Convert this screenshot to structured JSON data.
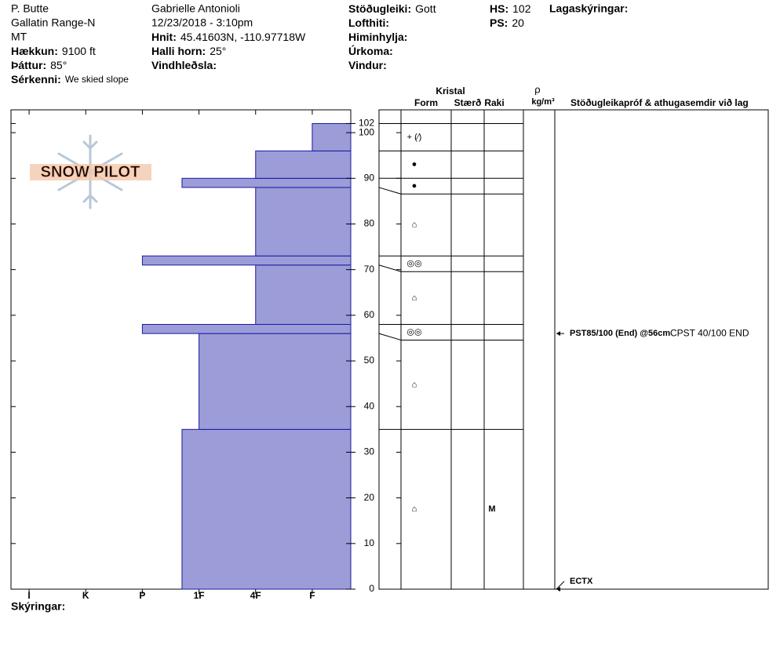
{
  "header": {
    "location": [
      "P. Butte",
      "Gallatin Range-N",
      "MT"
    ],
    "observer": "Gabrielle Antonioli",
    "datetime": "12/23/2018 - 3:10pm",
    "fields": [
      {
        "label": "Hækkun:",
        "value": "9100 ft"
      },
      {
        "label": "Þáttur:",
        "value": "85°"
      },
      {
        "label": "Sérkenni:",
        "value": "We skied slope"
      },
      {
        "label": "Hnit:",
        "value": "45.41603N, -110.97718W"
      },
      {
        "label": "Halli horn:",
        "value": "25°"
      },
      {
        "label": "Vindhleðsla:"
      },
      {
        "label": "Stöðugleiki:",
        "value": "Gott"
      },
      {
        "label": "Lofthiti:"
      },
      {
        "label": "Himinhylja:"
      },
      {
        "label": "Úrkoma:"
      },
      {
        "label": "Vindur:"
      },
      {
        "label": "HS:",
        "value": "102"
      },
      {
        "label": "PS:",
        "value": "20"
      }
    ],
    "notes_label": "Lagaskýringar:"
  },
  "logo": "SNOW PILOT",
  "profile": {
    "type": "bar",
    "ylim": [
      0,
      105
    ],
    "yticks": [
      0,
      10,
      20,
      30,
      40,
      50,
      60,
      70,
      80,
      90,
      100,
      102
    ],
    "xlim": [
      6.32,
      0.32
    ],
    "xticks": [
      {
        "value": 6,
        "label": "I"
      },
      {
        "value": 5,
        "label": "K"
      },
      {
        "value": 4,
        "label": "P"
      },
      {
        "value": 3,
        "label": "1F"
      },
      {
        "value": 2,
        "label": "4F"
      },
      {
        "value": 1,
        "label": "F"
      }
    ],
    "color": "#9c9cd9",
    "layers": [
      {
        "bottom": 0,
        "top": 35,
        "hardness": 3.3,
        "form": "⌂",
        "moisture": "M"
      },
      {
        "bottom": 35,
        "top": 56,
        "hardness": 3,
        "form": "⌂"
      },
      {
        "bottom": 56,
        "top": 58,
        "hardness": 4,
        "form": "◎◎"
      },
      {
        "bottom": 58,
        "top": 71,
        "hardness": 2,
        "form": "⌂"
      },
      {
        "bottom": 71,
        "top": 73,
        "hardness": 4,
        "form": "◎◎"
      },
      {
        "bottom": 73,
        "top": 88,
        "hardness": 2,
        "form": "⌂"
      },
      {
        "bottom": 88,
        "top": 90,
        "hardness": 3.3,
        "form": "●"
      },
      {
        "bottom": 90,
        "top": 96,
        "hardness": 2,
        "form": "●"
      },
      {
        "bottom": 96,
        "top": 102,
        "hardness": 1,
        "form": "+ (⁄)"
      }
    ]
  },
  "table": {
    "group": "Kristal",
    "columns": [
      "Form",
      "Stærð",
      "Raki"
    ],
    "density": "ρ",
    "density_unit": "kg/m³",
    "comments_title": "Stöðugleikapróf & athugasemdir við lag"
  },
  "tests": [
    {
      "depth": 56,
      "label": "PST85/100 (End) @56cm",
      "note": "CPST 40/100 END"
    },
    {
      "depth": 0,
      "label": "ECTX"
    }
  ],
  "footer": "Skýringar:"
}
